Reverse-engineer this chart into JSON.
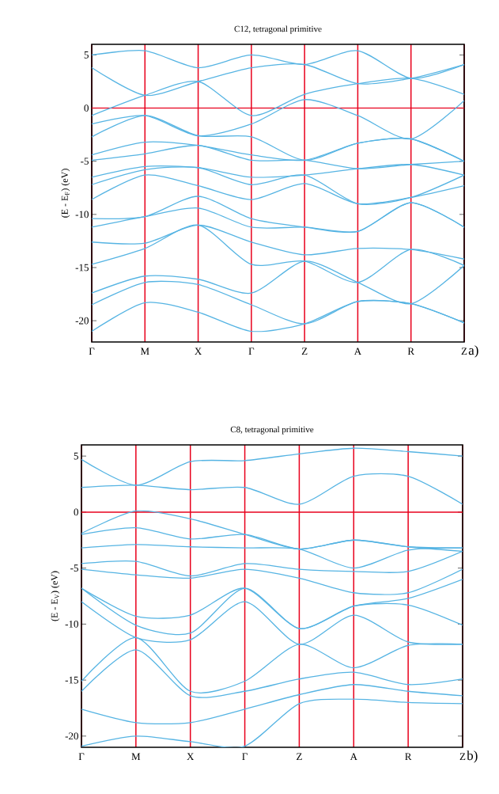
{
  "chart_data": [
    {
      "type": "line",
      "title": "C12, tetragonal primitive",
      "ylabel": "(E - E$_{F}$) (eV)",
      "annotations": [
        "a)"
      ],
      "categories": [
        "Γ",
        "M",
        "X",
        "Γ",
        "Z",
        "A",
        "R",
        "Z"
      ],
      "ylim": [
        -22,
        6
      ],
      "grid": "x",
      "yticks": [
        -20,
        -15,
        -10,
        -5,
        0,
        5
      ],
      "ref_lines": [
        {
          "axis": "y",
          "value": 0,
          "color": "#e8001c"
        }
      ],
      "series": [
        {
          "color": "#56b4e3",
          "values": [
            -21.0,
            -18.3,
            -19.2,
            -21.0,
            -20.3,
            -18.2,
            -18.4,
            -20.2
          ]
        },
        {
          "color": "#56b4e3",
          "values": [
            -18.5,
            -16.4,
            -16.6,
            -18.5,
            -20.3,
            -18.2,
            -18.4,
            -20.2
          ]
        },
        {
          "color": "#56b4e3",
          "values": [
            -17.4,
            -15.8,
            -16.1,
            -17.4,
            -14.4,
            -16.4,
            -18.4,
            -14.8
          ]
        },
        {
          "color": "#56b4e3",
          "values": [
            -14.7,
            -13.2,
            -11.0,
            -14.7,
            -14.4,
            -16.4,
            -13.3,
            -14.8
          ]
        },
        {
          "color": "#56b4e3",
          "values": [
            -12.6,
            -12.7,
            -11.0,
            -12.6,
            -13.8,
            -13.2,
            -13.3,
            -14.2
          ]
        },
        {
          "color": "#56b4e3",
          "values": [
            -11.2,
            -10.2,
            -9.4,
            -11.2,
            -11.2,
            -11.6,
            -8.9,
            -11.2
          ]
        },
        {
          "color": "#56b4e3",
          "values": [
            -10.4,
            -10.2,
            -8.3,
            -10.4,
            -11.2,
            -11.6,
            -8.9,
            -11.2
          ]
        },
        {
          "color": "#56b4e3",
          "values": [
            -8.6,
            -6.3,
            -7.3,
            -8.6,
            -7.1,
            -9.0,
            -8.4,
            -7.3
          ]
        },
        {
          "color": "#56b4e3",
          "values": [
            -7.2,
            -5.8,
            -5.6,
            -7.2,
            -6.3,
            -9.0,
            -8.4,
            -6.3
          ]
        },
        {
          "color": "#56b4e3",
          "values": [
            -6.5,
            -5.5,
            -5.6,
            -6.5,
            -6.3,
            -5.7,
            -5.3,
            -6.3
          ]
        },
        {
          "color": "#56b4e3",
          "values": [
            -4.9,
            -4.3,
            -3.5,
            -4.9,
            -4.9,
            -5.7,
            -5.3,
            -5.0
          ]
        },
        {
          "color": "#56b4e3",
          "values": [
            -4.4,
            -3.2,
            -3.5,
            -4.4,
            -4.9,
            -3.3,
            -2.9,
            -5.0
          ]
        },
        {
          "color": "#56b4e3",
          "values": [
            -2.7,
            -0.7,
            -2.6,
            -2.7,
            -4.9,
            -3.3,
            -2.9,
            -5.0
          ]
        },
        {
          "color": "#56b4e3",
          "values": [
            -1.5,
            -0.7,
            -2.6,
            -1.5,
            0.8,
            -0.7,
            -2.9,
            0.7
          ]
        },
        {
          "color": "#56b4e3",
          "values": [
            -0.7,
            1.2,
            2.5,
            -0.7,
            1.3,
            2.3,
            2.8,
            1.3
          ]
        },
        {
          "color": "#56b4e3",
          "values": [
            3.8,
            1.2,
            2.5,
            3.8,
            4.1,
            2.3,
            2.8,
            4.1
          ]
        },
        {
          "color": "#56b4e3",
          "values": [
            5.0,
            5.4,
            3.8,
            5.0,
            4.1,
            5.4,
            2.8,
            4.1
          ]
        }
      ]
    },
    {
      "type": "line",
      "title": "C8, tetragonal primitive",
      "ylabel": "(E - E$_{V}$) (eV)",
      "annotations": [
        "b)"
      ],
      "categories": [
        "Γ",
        "M",
        "X",
        "Γ",
        "Z",
        "A",
        "R",
        "Z"
      ],
      "ylim": [
        -21,
        6
      ],
      "grid": "x",
      "yticks": [
        -20,
        -15,
        -10,
        -5,
        0,
        5
      ],
      "ref_lines": [
        {
          "axis": "y",
          "value": 0,
          "color": "#e8001c"
        }
      ],
      "series": [
        {
          "color": "#56b4e3",
          "values": [
            -20.9,
            -20.0,
            -20.5,
            -20.9,
            -17.1,
            -16.7,
            -17.0,
            -17.1
          ]
        },
        {
          "color": "#56b4e3",
          "values": [
            -17.6,
            -18.8,
            -18.8,
            -17.6,
            -16.3,
            -15.4,
            -16.0,
            -16.4
          ]
        },
        {
          "color": "#56b4e3",
          "values": [
            -16.0,
            -12.3,
            -16.4,
            -16.0,
            -14.9,
            -14.3,
            -15.4,
            -14.9
          ]
        },
        {
          "color": "#56b4e3",
          "values": [
            -15.1,
            -11.2,
            -16.0,
            -15.1,
            -11.8,
            -13.9,
            -11.9,
            -11.8
          ]
        },
        {
          "color": "#56b4e3",
          "values": [
            -8.0,
            -11.2,
            -11.4,
            -8.0,
            -11.8,
            -9.2,
            -11.6,
            -11.8
          ]
        },
        {
          "color": "#56b4e3",
          "values": [
            -6.8,
            -10.1,
            -10.8,
            -6.8,
            -10.4,
            -8.4,
            -8.3,
            -10.1
          ]
        },
        {
          "color": "#56b4e3",
          "values": [
            -6.8,
            -9.3,
            -9.2,
            -6.8,
            -10.4,
            -8.4,
            -7.7,
            -6.0
          ]
        },
        {
          "color": "#56b4e3",
          "values": [
            -5.1,
            -5.6,
            -5.9,
            -5.1,
            -5.9,
            -7.2,
            -7.2,
            -5.1
          ]
        },
        {
          "color": "#56b4e3",
          "values": [
            -4.6,
            -4.4,
            -5.7,
            -4.6,
            -5.1,
            -5.3,
            -5.3,
            -3.5
          ]
        },
        {
          "color": "#56b4e3",
          "values": [
            -3.2,
            -2.9,
            -3.1,
            -3.2,
            -3.3,
            -5.0,
            -3.4,
            -3.2
          ]
        },
        {
          "color": "#56b4e3",
          "values": [
            -2.0,
            -1.4,
            -2.4,
            -2.0,
            -3.3,
            -2.5,
            -3.1,
            -3.5
          ]
        },
        {
          "color": "#56b4e3",
          "values": [
            -1.9,
            0.1,
            -0.6,
            -2.0,
            -3.3,
            -2.5,
            -3.1,
            -3.2
          ]
        },
        {
          "color": "#56b4e3",
          "values": [
            2.2,
            2.4,
            2.0,
            2.2,
            0.7,
            3.2,
            3.2,
            0.7
          ]
        },
        {
          "color": "#56b4e3",
          "values": [
            4.7,
            2.4,
            4.5,
            4.6,
            5.2,
            5.7,
            5.4,
            5.0
          ]
        }
      ]
    }
  ]
}
